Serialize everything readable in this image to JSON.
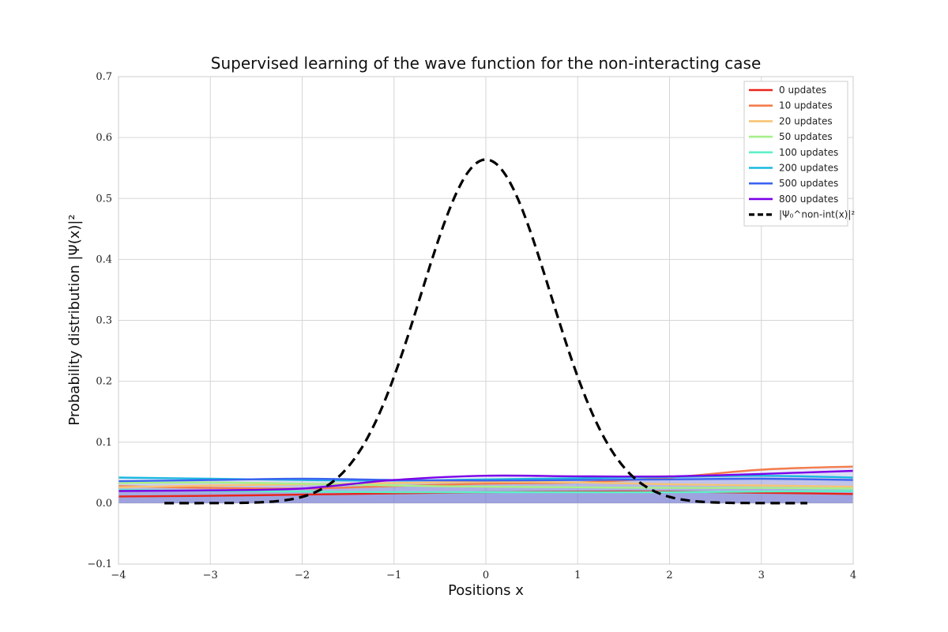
{
  "chart_data": {
    "type": "line",
    "title": "Supervised learning of the wave function for the non-interacting case",
    "xlabel": "Positions x",
    "ylabel": "Probability distribution |Ψ(x)|²",
    "xlim": [
      -4,
      4
    ],
    "ylim": [
      -0.1,
      0.7
    ],
    "xticks": [
      -4,
      -3,
      -2,
      -1,
      0,
      1,
      2,
      3,
      4
    ],
    "xtick_labels": [
      "−4",
      "−3",
      "−2",
      "−1",
      "0",
      "1",
      "2",
      "3",
      "4"
    ],
    "yticks": [
      -0.1,
      0.0,
      0.1,
      0.2,
      0.3,
      0.4,
      0.5,
      0.6,
      0.7
    ],
    "ytick_labels": [
      "−0.1",
      "0.0",
      "0.1",
      "0.2",
      "0.3",
      "0.4",
      "0.5",
      "0.6",
      "0.7"
    ],
    "grid": true,
    "legend_position": "top-right",
    "fill_color": "#7b7fd8",
    "x": [
      -4,
      -3,
      -2,
      -1,
      0,
      1,
      2,
      3,
      4
    ],
    "series": [
      {
        "name": "0 updates",
        "color": "#e8241c",
        "values": [
          0.011,
          0.012,
          0.014,
          0.016,
          0.018,
          0.019,
          0.019,
          0.017,
          0.015
        ]
      },
      {
        "name": "10 updates",
        "color": "#f47c4c",
        "values": [
          0.028,
          0.025,
          0.024,
          0.028,
          0.032,
          0.034,
          0.042,
          0.055,
          0.06
        ]
      },
      {
        "name": "20 updates",
        "color": "#f7c474",
        "values": [
          0.026,
          0.029,
          0.031,
          0.033,
          0.035,
          0.034,
          0.031,
          0.029,
          0.027
        ]
      },
      {
        "name": "50 updates",
        "color": "#a7f08a",
        "values": [
          0.033,
          0.034,
          0.032,
          0.029,
          0.027,
          0.026,
          0.025,
          0.025,
          0.024
        ]
      },
      {
        "name": "100 updates",
        "color": "#5ef0c8",
        "values": [
          0.022,
          0.02,
          0.019,
          0.018,
          0.018,
          0.018,
          0.018,
          0.019,
          0.02
        ]
      },
      {
        "name": "200 updates",
        "color": "#1ab8e0",
        "values": [
          0.042,
          0.04,
          0.038,
          0.037,
          0.039,
          0.041,
          0.043,
          0.045,
          0.042
        ]
      },
      {
        "name": "500 updates",
        "color": "#3a63f0",
        "values": [
          0.036,
          0.038,
          0.04,
          0.038,
          0.037,
          0.038,
          0.039,
          0.04,
          0.038
        ]
      },
      {
        "name": "800 updates",
        "color": "#7b00e8",
        "values": [
          0.02,
          0.021,
          0.024,
          0.038,
          0.045,
          0.044,
          0.044,
          0.048,
          0.053
        ]
      }
    ],
    "reference": {
      "name": "|Ψ₀^non-int(x)|²",
      "color": "#000000",
      "style": "dashed",
      "x_range": [
        -3.5,
        3.5
      ],
      "peak": 0.564,
      "function": "exp(-x^2)/sqrt(pi)"
    }
  }
}
